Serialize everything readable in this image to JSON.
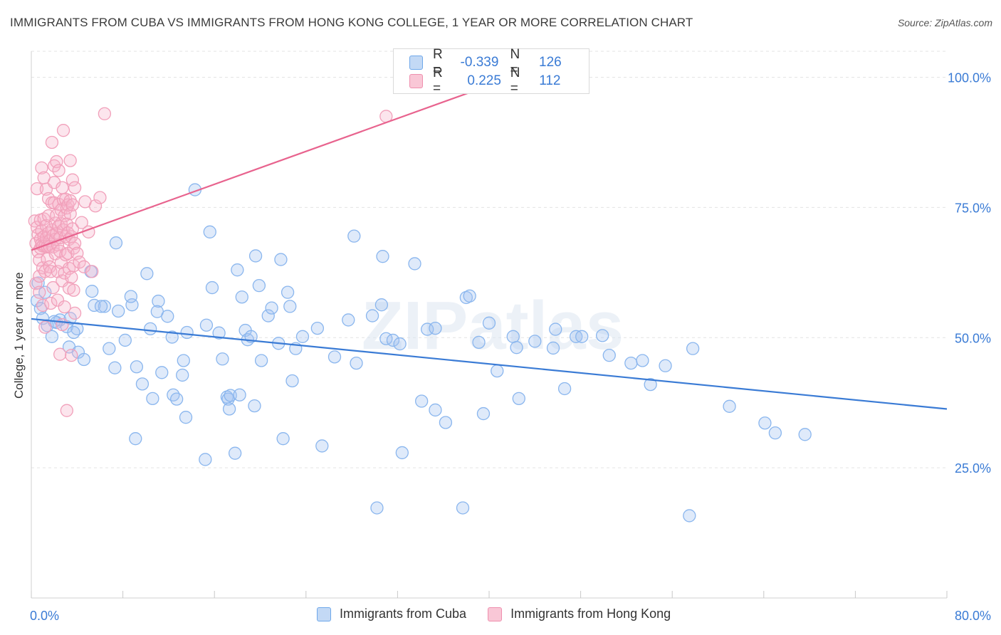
{
  "title": "IMMIGRANTS FROM CUBA VS IMMIGRANTS FROM HONG KONG COLLEGE, 1 YEAR OR MORE CORRELATION CHART",
  "source": "Source: ZipAtlas.com",
  "watermark": "ZIPatlas",
  "legend_top": {
    "r_label": "R =",
    "n_label": "N =",
    "rows": [
      {
        "r": "-0.339",
        "n": "126",
        "color": "#6fa8ea",
        "fill": "#c3d9f5"
      },
      {
        "r": "0.225",
        "n": "112",
        "color": "#ef8fae",
        "fill": "#f9c7d6"
      }
    ]
  },
  "legend_bottom": [
    {
      "label": "Immigrants from Cuba",
      "color": "#6fa8ea",
      "fill": "#c3d9f5"
    },
    {
      "label": "Immigrants from Hong Kong",
      "color": "#ef8fae",
      "fill": "#f9c7d6"
    }
  ],
  "chart_data": {
    "type": "scatter",
    "title": "IMMIGRANTS FROM CUBA VS IMMIGRANTS FROM HONG KONG COLLEGE, 1 YEAR OR MORE CORRELATION CHART",
    "xlabel": "",
    "ylabel": "College, 1 year or more",
    "xlim": [
      0,
      80
    ],
    "ylim": [
      0,
      105
    ],
    "x_tick_labels": [
      "0.0%",
      "80.0%"
    ],
    "y_tick_labels": [
      "25.0%",
      "50.0%",
      "75.0%",
      "100.0%"
    ],
    "y_ticks": [
      25,
      50,
      75,
      100
    ],
    "grid": true,
    "legend_placement": "top-center",
    "series": [
      {
        "name": "Immigrants from Cuba",
        "color": "#3a7bd5",
        "stroke": "#8ab6ee",
        "fill": "rgba(164,196,240,0.35)",
        "trend": [
          [
            0,
            53.6
          ],
          [
            80,
            36.3
          ]
        ],
        "points": [
          [
            0.5,
            57.1
          ],
          [
            0.8,
            55.6
          ],
          [
            1.0,
            53.7
          ],
          [
            1.4,
            52.3
          ],
          [
            1.8,
            50.2
          ],
          [
            2.2,
            52.9
          ],
          [
            2.5,
            53.4
          ],
          [
            3.1,
            52.1
          ],
          [
            3.3,
            48.2
          ],
          [
            3.4,
            53.7
          ],
          [
            4.0,
            51.7
          ],
          [
            4.1,
            47.2
          ],
          [
            4.6,
            45.8
          ],
          [
            5.5,
            56.2
          ],
          [
            5.2,
            62.7
          ],
          [
            6.4,
            56.0
          ],
          [
            5.3,
            58.9
          ],
          [
            6.1,
            56.0
          ],
          [
            6.8,
            47.9
          ],
          [
            7.4,
            68.2
          ],
          [
            7.6,
            55.1
          ],
          [
            7.3,
            44.2
          ],
          [
            8.2,
            49.5
          ],
          [
            8.8,
            56.3
          ],
          [
            8.7,
            57.9
          ],
          [
            9.2,
            44.4
          ],
          [
            9.7,
            41.1
          ],
          [
            9.1,
            30.6
          ],
          [
            10.1,
            62.3
          ],
          [
            10.4,
            51.7
          ],
          [
            10.6,
            38.3
          ],
          [
            11.1,
            57.0
          ],
          [
            11.0,
            55.0
          ],
          [
            11.4,
            43.3
          ],
          [
            11.9,
            54.1
          ],
          [
            12.4,
            39.0
          ],
          [
            12.3,
            50.1
          ],
          [
            12.7,
            38.2
          ],
          [
            13.2,
            42.8
          ],
          [
            13.3,
            45.6
          ],
          [
            13.5,
            34.7
          ],
          [
            13.6,
            51.0
          ],
          [
            14.3,
            78.4
          ],
          [
            15.3,
            52.4
          ],
          [
            15.2,
            26.6
          ],
          [
            15.6,
            70.3
          ],
          [
            15.8,
            59.6
          ],
          [
            16.4,
            50.9
          ],
          [
            16.7,
            45.9
          ],
          [
            17.1,
            38.6
          ],
          [
            17.2,
            38.2
          ],
          [
            17.3,
            36.3
          ],
          [
            17.4,
            38.9
          ],
          [
            17.8,
            27.8
          ],
          [
            18.0,
            63.0
          ],
          [
            18.2,
            39.0
          ],
          [
            18.4,
            57.8
          ],
          [
            18.7,
            51.4
          ],
          [
            18.9,
            49.6
          ],
          [
            19.2,
            50.2
          ],
          [
            19.5,
            36.9
          ],
          [
            19.6,
            65.7
          ],
          [
            19.9,
            60.0
          ],
          [
            20.1,
            45.6
          ],
          [
            20.7,
            54.2
          ],
          [
            21.0,
            55.7
          ],
          [
            21.6,
            48.9
          ],
          [
            21.8,
            65.0
          ],
          [
            22.0,
            30.6
          ],
          [
            22.4,
            58.7
          ],
          [
            22.6,
            56.0
          ],
          [
            22.8,
            41.7
          ],
          [
            23.1,
            47.9
          ],
          [
            23.7,
            50.2
          ],
          [
            25.0,
            51.8
          ],
          [
            25.4,
            29.2
          ],
          [
            26.5,
            46.3
          ],
          [
            27.7,
            53.4
          ],
          [
            28.2,
            69.5
          ],
          [
            28.4,
            45.1
          ],
          [
            29.8,
            54.2
          ],
          [
            30.2,
            17.3
          ],
          [
            30.6,
            56.3
          ],
          [
            30.7,
            65.6
          ],
          [
            31.0,
            49.8
          ],
          [
            31.6,
            49.5
          ],
          [
            32.2,
            48.8
          ],
          [
            32.4,
            27.9
          ],
          [
            33.5,
            64.2
          ],
          [
            34.1,
            37.8
          ],
          [
            34.6,
            51.6
          ],
          [
            35.3,
            36.1
          ],
          [
            35.3,
            51.8
          ],
          [
            36.2,
            33.7
          ],
          [
            37.7,
            17.3
          ],
          [
            38.0,
            57.7
          ],
          [
            38.3,
            58.0
          ],
          [
            39.1,
            49.1
          ],
          [
            39.5,
            35.4
          ],
          [
            40.0,
            52.8
          ],
          [
            40.7,
            43.6
          ],
          [
            42.1,
            50.2
          ],
          [
            42.4,
            48.1
          ],
          [
            42.6,
            38.3
          ],
          [
            44.0,
            49.3
          ],
          [
            45.6,
            48.0
          ],
          [
            45.8,
            51.6
          ],
          [
            46.6,
            40.2
          ],
          [
            47.6,
            50.2
          ],
          [
            48.1,
            50.2
          ],
          [
            49.9,
            50.4
          ],
          [
            50.5,
            46.6
          ],
          [
            52.4,
            45.1
          ],
          [
            53.4,
            45.6
          ],
          [
            54.1,
            41.0
          ],
          [
            55.4,
            44.6
          ],
          [
            57.5,
            15.8
          ],
          [
            57.8,
            47.9
          ],
          [
            61.0,
            36.8
          ],
          [
            64.1,
            33.6
          ],
          [
            65.0,
            31.7
          ],
          [
            67.6,
            31.4
          ],
          [
            0.6,
            60.5
          ],
          [
            1.2,
            58.7
          ],
          [
            2.0,
            53.1
          ],
          [
            3.7,
            51.0
          ]
        ]
      },
      {
        "name": "Immigrants from Hong Kong",
        "color": "#e8638e",
        "stroke": "#f1a0ba",
        "fill": "rgba(245,180,202,0.35)",
        "trend": [
          [
            0,
            66.8
          ],
          [
            42,
            100
          ]
        ],
        "points": [
          [
            0.3,
            72.4
          ],
          [
            0.4,
            68.1
          ],
          [
            0.4,
            60.4
          ],
          [
            0.5,
            78.6
          ],
          [
            0.5,
            71.2
          ],
          [
            0.6,
            69.8
          ],
          [
            0.6,
            66.5
          ],
          [
            0.7,
            64.9
          ],
          [
            0.7,
            61.8
          ],
          [
            0.7,
            58.7
          ],
          [
            0.8,
            72.6
          ],
          [
            0.8,
            68.9
          ],
          [
            0.8,
            67.2
          ],
          [
            0.9,
            82.6
          ],
          [
            0.9,
            70.5
          ],
          [
            0.9,
            68.0
          ],
          [
            1.0,
            67.6
          ],
          [
            1.0,
            63.4
          ],
          [
            1.0,
            56.2
          ],
          [
            1.1,
            80.7
          ],
          [
            1.1,
            72.8
          ],
          [
            1.1,
            69.4
          ],
          [
            1.2,
            67.6
          ],
          [
            1.2,
            62.7
          ],
          [
            1.2,
            52.0
          ],
          [
            1.3,
            78.5
          ],
          [
            1.3,
            71.5
          ],
          [
            1.3,
            69.1
          ],
          [
            1.4,
            67.5
          ],
          [
            1.4,
            65.1
          ],
          [
            1.5,
            76.7
          ],
          [
            1.5,
            73.4
          ],
          [
            1.5,
            70.1
          ],
          [
            1.6,
            68.6
          ],
          [
            1.6,
            67.5
          ],
          [
            1.6,
            63.6
          ],
          [
            1.7,
            62.7
          ],
          [
            1.7,
            56.6
          ],
          [
            1.8,
            87.5
          ],
          [
            1.8,
            75.9
          ],
          [
            1.8,
            70.7
          ],
          [
            1.9,
            69.6
          ],
          [
            1.9,
            67.4
          ],
          [
            1.9,
            59.6
          ],
          [
            2.0,
            83.0
          ],
          [
            2.0,
            79.8
          ],
          [
            2.0,
            75.9
          ],
          [
            2.1,
            72.0
          ],
          [
            2.1,
            68.9
          ],
          [
            2.1,
            66.1
          ],
          [
            2.2,
            83.8
          ],
          [
            2.2,
            73.5
          ],
          [
            2.2,
            70.0
          ],
          [
            2.3,
            67.8
          ],
          [
            2.3,
            62.7
          ],
          [
            2.3,
            57.2
          ],
          [
            2.4,
            82.1
          ],
          [
            2.4,
            75.6
          ],
          [
            2.4,
            71.4
          ],
          [
            2.5,
            69.2
          ],
          [
            2.5,
            66.6
          ],
          [
            2.5,
            46.8
          ],
          [
            2.6,
            74.5
          ],
          [
            2.6,
            71.9
          ],
          [
            2.6,
            64.4
          ],
          [
            2.7,
            78.8
          ],
          [
            2.7,
            60.9
          ],
          [
            2.7,
            52.5
          ],
          [
            2.8,
            89.8
          ],
          [
            2.8,
            76.5
          ],
          [
            2.8,
            70.7
          ],
          [
            2.9,
            73.4
          ],
          [
            2.9,
            62.4
          ],
          [
            2.9,
            55.9
          ],
          [
            3.0,
            76.6
          ],
          [
            3.0,
            69.4
          ],
          [
            3.0,
            65.9
          ],
          [
            3.1,
            74.9
          ],
          [
            3.1,
            71.8
          ],
          [
            3.1,
            36.0
          ],
          [
            3.2,
            75.5
          ],
          [
            3.2,
            70.1
          ],
          [
            3.2,
            66.2
          ],
          [
            3.3,
            68.9
          ],
          [
            3.3,
            63.3
          ],
          [
            3.3,
            59.5
          ],
          [
            3.4,
            84.0
          ],
          [
            3.4,
            76.3
          ],
          [
            3.4,
            73.8
          ],
          [
            3.5,
            69.4
          ],
          [
            3.5,
            61.6
          ],
          [
            3.5,
            46.6
          ],
          [
            3.6,
            80.3
          ],
          [
            3.6,
            75.5
          ],
          [
            3.6,
            70.9
          ],
          [
            3.7,
            67.2
          ],
          [
            3.7,
            63.8
          ],
          [
            3.7,
            59.1
          ],
          [
            3.8,
            78.8
          ],
          [
            3.8,
            68.1
          ],
          [
            3.8,
            54.7
          ],
          [
            4.0,
            66.2
          ],
          [
            4.2,
            64.5
          ],
          [
            4.4,
            72.1
          ],
          [
            4.6,
            63.6
          ],
          [
            4.7,
            76.1
          ],
          [
            5.0,
            70.3
          ],
          [
            5.3,
            62.7
          ],
          [
            5.6,
            75.3
          ],
          [
            6.0,
            76.9
          ],
          [
            6.4,
            93.0
          ],
          [
            31.0,
            92.5
          ]
        ]
      }
    ]
  }
}
